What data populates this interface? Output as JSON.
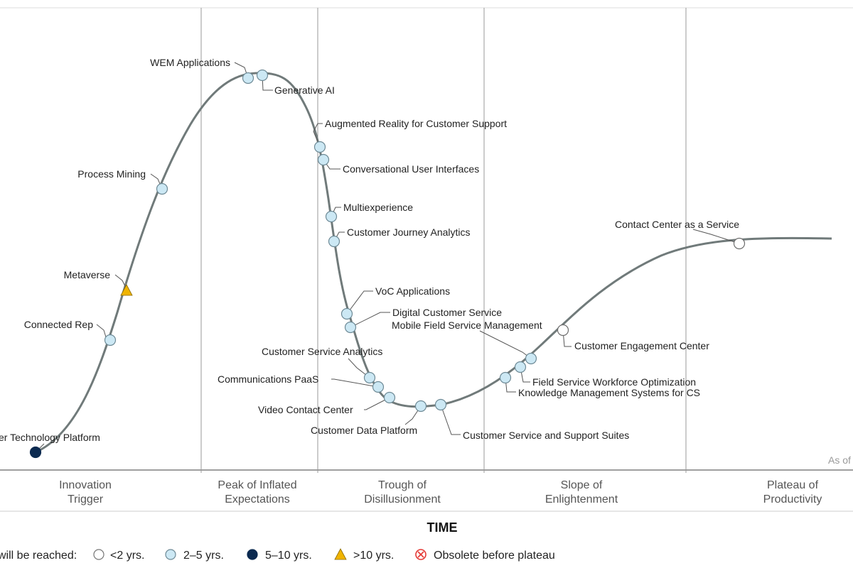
{
  "axis_title": "TIME",
  "as_of_text": "As of",
  "phases": [
    {
      "line1": "Innovation",
      "line2": "Trigger"
    },
    {
      "line1": "Peak of Inflated",
      "line2": "Expectations"
    },
    {
      "line1": "Trough of",
      "line2": "Disillusionment"
    },
    {
      "line1": "Slope of",
      "line2": "Enlightenment"
    },
    {
      "line1": "Plateau of",
      "line2": "Productivity"
    }
  ],
  "legend": {
    "prefix": "will be reached:",
    "items": [
      {
        "label": "<2 yrs.",
        "marker": "hollow-circle",
        "color": "#ffffff"
      },
      {
        "label": "2–5 yrs.",
        "marker": "light-circle",
        "color": "#cce8f4"
      },
      {
        "label": "5–10 yrs.",
        "marker": "dark-circle",
        "color": "#0b2a50"
      },
      {
        "label": ">10 yrs.",
        "marker": "triangle",
        "color": "#f0b400"
      },
      {
        "label": "Obsolete before plateau",
        "marker": "x-circle",
        "color": "#e53935"
      }
    ]
  },
  "technologies": [
    {
      "name": "er Technology Platform",
      "marker": "dark"
    },
    {
      "name": "Connected Rep",
      "marker": "light"
    },
    {
      "name": "Metaverse",
      "marker": "triangle"
    },
    {
      "name": "Process Mining",
      "marker": "light"
    },
    {
      "name": "WEM Applications",
      "marker": "light"
    },
    {
      "name": "Generative AI",
      "marker": "light"
    },
    {
      "name": "Augmented Reality for Customer Support",
      "marker": "light"
    },
    {
      "name": "Conversational User Interfaces",
      "marker": "light"
    },
    {
      "name": "Multiexperience",
      "marker": "light"
    },
    {
      "name": "Customer Journey Analytics",
      "marker": "light"
    },
    {
      "name": "VoC Applications",
      "marker": "light"
    },
    {
      "name": "Digital Customer Service",
      "marker": "light"
    },
    {
      "name": "Customer Service Analytics",
      "marker": "light"
    },
    {
      "name": "Communications PaaS",
      "marker": "light"
    },
    {
      "name": "Video Contact Center",
      "marker": "light"
    },
    {
      "name": "Customer Data Platform",
      "marker": "light"
    },
    {
      "name": "Customer Service and Support Suites",
      "marker": "light"
    },
    {
      "name": "Knowledge Management Systems for CS",
      "marker": "light"
    },
    {
      "name": "Field Service Workforce Optimization",
      "marker": "light"
    },
    {
      "name": "Mobile Field Service Management",
      "marker": "light"
    },
    {
      "name": "Customer Engagement Center",
      "marker": "hollow"
    },
    {
      "name": "Contact Center as a Service",
      "marker": "hollow"
    }
  ]
}
